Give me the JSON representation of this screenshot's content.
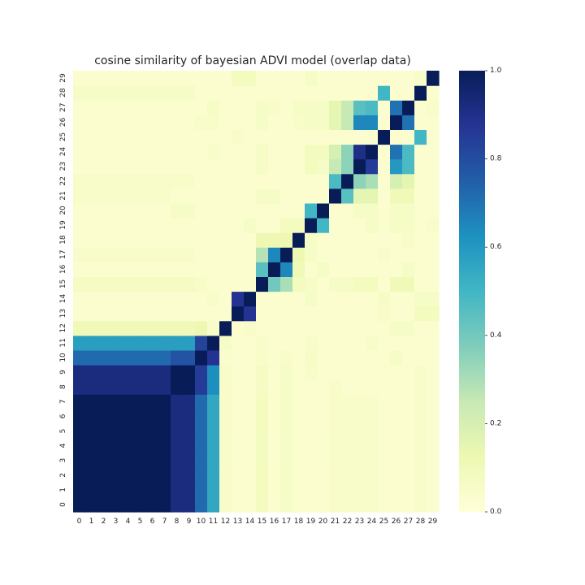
{
  "chart_data": {
    "type": "heatmap",
    "title": "cosine similarity of bayesian ADVI model (overlap data)",
    "xlabel": "",
    "ylabel": "",
    "x_ticks": [
      "0",
      "1",
      "2",
      "3",
      "4",
      "5",
      "6",
      "7",
      "8",
      "9",
      "10",
      "11",
      "12",
      "13",
      "14",
      "15",
      "16",
      "17",
      "18",
      "19",
      "20",
      "21",
      "22",
      "23",
      "24",
      "25",
      "26",
      "27",
      "28",
      "29"
    ],
    "y_ticks": [
      "0",
      "1",
      "2",
      "3",
      "4",
      "5",
      "6",
      "7",
      "8",
      "9",
      "10",
      "11",
      "12",
      "13",
      "14",
      "15",
      "16",
      "17",
      "18",
      "19",
      "20",
      "21",
      "22",
      "23",
      "24",
      "25",
      "26",
      "27",
      "28",
      "29"
    ],
    "colormap": "YlGnBu",
    "vmin": 0.0,
    "vmax": 1.0,
    "colorbar_ticks": [
      "0.0",
      "0.2",
      "0.4",
      "0.6",
      "0.8",
      "1.0"
    ],
    "y_origin": "bottom",
    "matrix": [
      [
        1,
        1,
        1,
        1,
        1,
        1,
        1,
        1,
        0.92,
        0.92,
        0.72,
        0.55,
        0.05,
        0.03,
        0.03,
        0.08,
        0.03,
        0.06,
        0.03,
        0.03,
        0.03,
        0.05,
        0.05,
        0.05,
        0.05,
        0.03,
        0.03,
        0.03,
        0.05,
        0.03
      ],
      [
        1,
        1,
        1,
        1,
        1,
        1,
        1,
        1,
        0.92,
        0.92,
        0.72,
        0.55,
        0.05,
        0.03,
        0.03,
        0.08,
        0.03,
        0.06,
        0.03,
        0.03,
        0.03,
        0.05,
        0.05,
        0.05,
        0.05,
        0.03,
        0.03,
        0.03,
        0.05,
        0.03
      ],
      [
        1,
        1,
        1,
        1,
        1,
        1,
        1,
        1,
        0.92,
        0.92,
        0.72,
        0.55,
        0.05,
        0.03,
        0.03,
        0.08,
        0.03,
        0.06,
        0.03,
        0.03,
        0.03,
        0.05,
        0.05,
        0.05,
        0.05,
        0.03,
        0.03,
        0.03,
        0.05,
        0.03
      ],
      [
        1,
        1,
        1,
        1,
        1,
        1,
        1,
        1,
        0.92,
        0.92,
        0.72,
        0.55,
        0.05,
        0.03,
        0.03,
        0.08,
        0.03,
        0.06,
        0.03,
        0.03,
        0.03,
        0.05,
        0.05,
        0.05,
        0.05,
        0.03,
        0.03,
        0.03,
        0.05,
        0.03
      ],
      [
        1,
        1,
        1,
        1,
        1,
        1,
        1,
        1,
        0.92,
        0.92,
        0.72,
        0.55,
        0.05,
        0.03,
        0.03,
        0.08,
        0.03,
        0.06,
        0.03,
        0.03,
        0.03,
        0.05,
        0.05,
        0.05,
        0.05,
        0.03,
        0.03,
        0.03,
        0.05,
        0.03
      ],
      [
        1,
        1,
        1,
        1,
        1,
        1,
        1,
        1,
        0.92,
        0.92,
        0.72,
        0.55,
        0.05,
        0.03,
        0.03,
        0.08,
        0.03,
        0.06,
        0.03,
        0.03,
        0.03,
        0.05,
        0.05,
        0.05,
        0.05,
        0.03,
        0.03,
        0.03,
        0.05,
        0.03
      ],
      [
        1,
        1,
        1,
        1,
        1,
        1,
        1,
        1,
        0.92,
        0.92,
        0.72,
        0.55,
        0.05,
        0.03,
        0.03,
        0.08,
        0.03,
        0.06,
        0.03,
        0.03,
        0.03,
        0.05,
        0.05,
        0.05,
        0.05,
        0.03,
        0.03,
        0.03,
        0.05,
        0.03
      ],
      [
        1,
        1,
        1,
        1,
        1,
        1,
        1,
        1,
        0.92,
        0.92,
        0.72,
        0.55,
        0.05,
        0.03,
        0.03,
        0.08,
        0.03,
        0.06,
        0.03,
        0.03,
        0.03,
        0.05,
        0.05,
        0.05,
        0.05,
        0.03,
        0.03,
        0.03,
        0.05,
        0.03
      ],
      [
        0.92,
        0.92,
        0.92,
        0.92,
        0.92,
        0.92,
        0.92,
        0.92,
        1,
        1,
        0.85,
        0.63,
        0.05,
        0.03,
        0.03,
        0.07,
        0.03,
        0.06,
        0.03,
        0.03,
        0.03,
        0.05,
        0.03,
        0.03,
        0.03,
        0.03,
        0.03,
        0.03,
        0.05,
        0.03
      ],
      [
        0.92,
        0.92,
        0.92,
        0.92,
        0.92,
        0.92,
        0.92,
        0.92,
        1,
        1,
        0.85,
        0.63,
        0.05,
        0.03,
        0.03,
        0.07,
        0.03,
        0.06,
        0.03,
        0.05,
        0.03,
        0.03,
        0.03,
        0.03,
        0.03,
        0.03,
        0.03,
        0.03,
        0.05,
        0.03
      ],
      [
        0.72,
        0.72,
        0.72,
        0.72,
        0.72,
        0.72,
        0.72,
        0.72,
        0.78,
        0.78,
        1,
        0.88,
        0.04,
        0.03,
        0.03,
        0.05,
        0.03,
        0.05,
        0.03,
        0.06,
        0.03,
        0.03,
        0.03,
        0.03,
        0.03,
        0.03,
        0.06,
        0.03,
        0.03,
        0.03
      ],
      [
        0.58,
        0.58,
        0.58,
        0.58,
        0.58,
        0.58,
        0.58,
        0.58,
        0.58,
        0.58,
        0.83,
        1,
        0.06,
        0.03,
        0.03,
        0.05,
        0.03,
        0.03,
        0.03,
        0.05,
        0.03,
        0.03,
        0.03,
        0.03,
        0.05,
        0.03,
        0.03,
        0.03,
        0.03,
        0.03
      ],
      [
        0.1,
        0.1,
        0.1,
        0.1,
        0.1,
        0.1,
        0.1,
        0.1,
        0.1,
        0.1,
        0.12,
        0.05,
        1,
        0.03,
        0.05,
        0.03,
        0.03,
        0.03,
        0.03,
        0.03,
        0.03,
        0.03,
        0.03,
        0.03,
        0.03,
        0.03,
        0.06,
        0.06,
        0.03,
        0.03
      ],
      [
        0.03,
        0.03,
        0.03,
        0.03,
        0.03,
        0.03,
        0.03,
        0.03,
        0.03,
        0.03,
        0.03,
        0.03,
        0.03,
        1,
        0.88,
        0.03,
        0.03,
        0.03,
        0.03,
        0.03,
        0.03,
        0.03,
        0.03,
        0.03,
        0.03,
        0.05,
        0.03,
        0.03,
        0.08,
        0.08
      ],
      [
        0.03,
        0.03,
        0.03,
        0.03,
        0.03,
        0.03,
        0.03,
        0.03,
        0.03,
        0.03,
        0.03,
        0.05,
        0.03,
        0.88,
        1,
        0.03,
        0.03,
        0.03,
        0.03,
        0.06,
        0.03,
        0.03,
        0.03,
        0.03,
        0.03,
        0.06,
        0.03,
        0.03,
        0.06,
        0.06
      ],
      [
        0.07,
        0.07,
        0.07,
        0.07,
        0.07,
        0.07,
        0.07,
        0.07,
        0.07,
        0.07,
        0.05,
        0.03,
        0.03,
        0.03,
        0.03,
        1,
        0.4,
        0.3,
        0.08,
        0.06,
        0.03,
        0.06,
        0.06,
        0.08,
        0.08,
        0.03,
        0.1,
        0.1,
        0.03,
        0.03
      ],
      [
        0.03,
        0.03,
        0.03,
        0.03,
        0.03,
        0.03,
        0.03,
        0.03,
        0.03,
        0.03,
        0.03,
        0.03,
        0.03,
        0.03,
        0.03,
        0.45,
        1,
        0.65,
        0.1,
        0.03,
        0.06,
        0.03,
        0.03,
        0.03,
        0.03,
        0.03,
        0.03,
        0.06,
        0.03,
        0.03
      ],
      [
        0.05,
        0.05,
        0.05,
        0.05,
        0.05,
        0.05,
        0.05,
        0.05,
        0.05,
        0.05,
        0.03,
        0.03,
        0.03,
        0.03,
        0.03,
        0.28,
        0.65,
        1,
        0.12,
        0.06,
        0.03,
        0.03,
        0.03,
        0.03,
        0.03,
        0.05,
        0.03,
        0.03,
        0.03,
        0.03
      ],
      [
        0.03,
        0.03,
        0.03,
        0.03,
        0.03,
        0.03,
        0.03,
        0.03,
        0.03,
        0.03,
        0.03,
        0.03,
        0.03,
        0.03,
        0.03,
        0.12,
        0.12,
        0.12,
        1,
        0.06,
        0.03,
        0.03,
        0.03,
        0.03,
        0.03,
        0.03,
        0.03,
        0.05,
        0.03,
        0.03
      ],
      [
        0.03,
        0.03,
        0.03,
        0.03,
        0.03,
        0.03,
        0.03,
        0.03,
        0.03,
        0.03,
        0.03,
        0.03,
        0.03,
        0.03,
        0.06,
        0.03,
        0.03,
        0.08,
        0.08,
        1,
        0.5,
        0.03,
        0.03,
        0.03,
        0.06,
        0.03,
        0.06,
        0.06,
        0.03,
        0.05
      ],
      [
        0.03,
        0.03,
        0.03,
        0.03,
        0.03,
        0.03,
        0.03,
        0.03,
        0.06,
        0.06,
        0.03,
        0.03,
        0.03,
        0.03,
        0.03,
        0.03,
        0.03,
        0.03,
        0.03,
        0.5,
        1,
        0.03,
        0.03,
        0.06,
        0.06,
        0.03,
        0.06,
        0.06,
        0.03,
        0.03
      ],
      [
        0.05,
        0.05,
        0.05,
        0.05,
        0.05,
        0.05,
        0.05,
        0.05,
        0.03,
        0.03,
        0.03,
        0.03,
        0.03,
        0.03,
        0.03,
        0.06,
        0.06,
        0.03,
        0.03,
        0.03,
        0.03,
        1,
        0.45,
        0.15,
        0.15,
        0.03,
        0.1,
        0.1,
        0.03,
        0.03
      ],
      [
        0.05,
        0.05,
        0.05,
        0.05,
        0.05,
        0.05,
        0.05,
        0.05,
        0.05,
        0.05,
        0.03,
        0.03,
        0.03,
        0.03,
        0.03,
        0.03,
        0.03,
        0.03,
        0.03,
        0.03,
        0.03,
        0.48,
        1,
        0.35,
        0.3,
        0.03,
        0.2,
        0.15,
        0.03,
        0.03
      ],
      [
        0.03,
        0.03,
        0.03,
        0.03,
        0.03,
        0.03,
        0.03,
        0.03,
        0.03,
        0.03,
        0.03,
        0.03,
        0.03,
        0.03,
        0.03,
        0.06,
        0.03,
        0.03,
        0.03,
        0.08,
        0.06,
        0.25,
        0.35,
        1,
        0.85,
        0.03,
        0.6,
        0.48,
        0.03,
        0.03
      ],
      [
        0.03,
        0.03,
        0.03,
        0.03,
        0.03,
        0.03,
        0.03,
        0.03,
        0.03,
        0.03,
        0.03,
        0.05,
        0.03,
        0.03,
        0.03,
        0.06,
        0.03,
        0.03,
        0.03,
        0.08,
        0.08,
        0.2,
        0.35,
        0.9,
        1,
        0.03,
        0.7,
        0.48,
        0.03,
        0.03
      ],
      [
        0.03,
        0.03,
        0.03,
        0.03,
        0.03,
        0.03,
        0.03,
        0.03,
        0.03,
        0.03,
        0.03,
        0.03,
        0.03,
        0.05,
        0.03,
        0.03,
        0.03,
        0.03,
        0.03,
        0.03,
        0.03,
        0.03,
        0.03,
        0.03,
        0.03,
        1,
        0.03,
        0.03,
        0.5,
        0.03
      ],
      [
        0.03,
        0.03,
        0.03,
        0.03,
        0.03,
        0.03,
        0.03,
        0.03,
        0.03,
        0.03,
        0.05,
        0.05,
        0.03,
        0.03,
        0.03,
        0.06,
        0.03,
        0.03,
        0.05,
        0.06,
        0.06,
        0.15,
        0.25,
        0.65,
        0.65,
        0.03,
        1,
        0.7,
        0.03,
        0.03
      ],
      [
        0.03,
        0.03,
        0.03,
        0.03,
        0.03,
        0.03,
        0.03,
        0.03,
        0.03,
        0.03,
        0.03,
        0.06,
        0.03,
        0.03,
        0.03,
        0.06,
        0.05,
        0.03,
        0.06,
        0.06,
        0.06,
        0.15,
        0.25,
        0.45,
        0.48,
        0.03,
        0.7,
        1,
        0.03,
        0.05
      ],
      [
        0.06,
        0.06,
        0.06,
        0.06,
        0.06,
        0.06,
        0.06,
        0.06,
        0.06,
        0.06,
        0.03,
        0.03,
        0.03,
        0.03,
        0.03,
        0.03,
        0.03,
        0.03,
        0.03,
        0.03,
        0.03,
        0.03,
        0.03,
        0.03,
        0.03,
        0.5,
        0.03,
        0.03,
        1,
        0.03
      ],
      [
        0.03,
        0.03,
        0.03,
        0.03,
        0.03,
        0.03,
        0.03,
        0.03,
        0.03,
        0.03,
        0.03,
        0.03,
        0.03,
        0.08,
        0.08,
        0.03,
        0.03,
        0.03,
        0.03,
        0.06,
        0.03,
        0.03,
        0.03,
        0.03,
        0.03,
        0.03,
        0.03,
        0.03,
        0.05,
        1
      ]
    ]
  }
}
